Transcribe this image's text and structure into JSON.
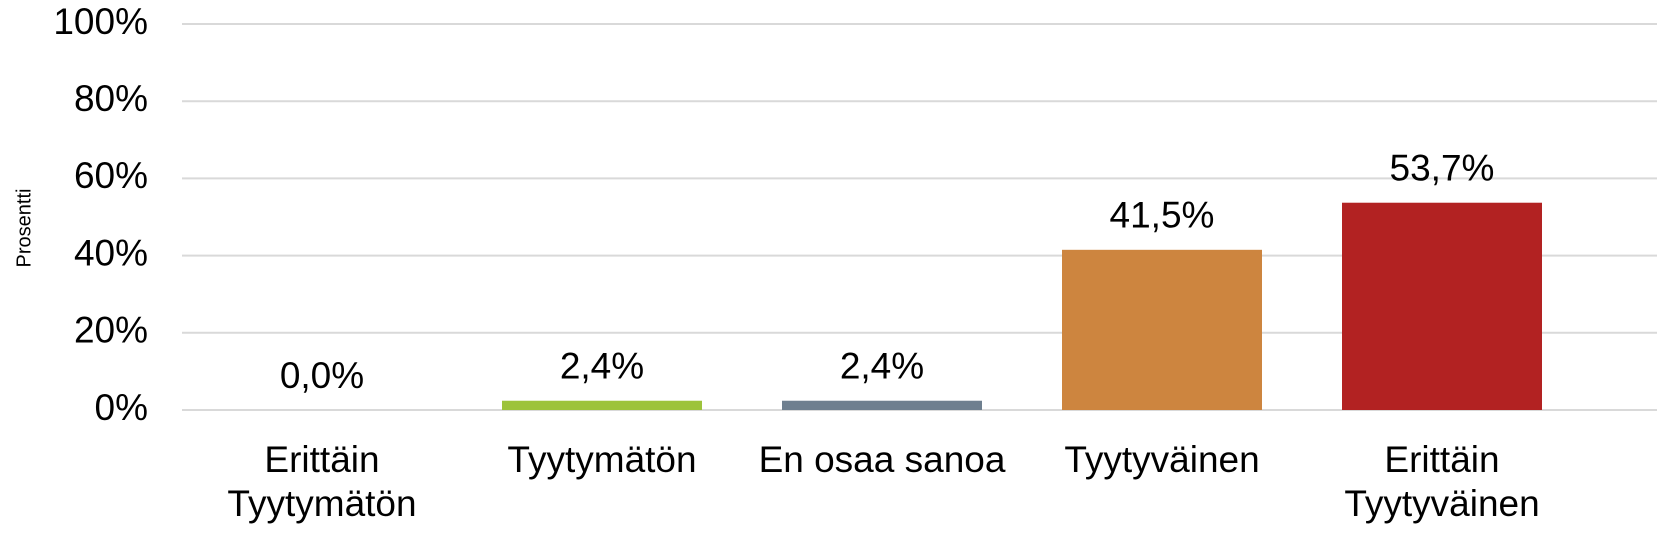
{
  "chart_data": {
    "type": "bar",
    "y_axis_label": "Prosentti",
    "categories": [
      "Erittäin Tyytymätön",
      "Tyytymätön",
      "En osaa sanoa",
      "Tyytyväinen",
      "Erittäin Tyytyväinen"
    ],
    "values": [
      0,
      2.4,
      2.4,
      41.5,
      53.7
    ],
    "value_labels": [
      "0,0%",
      "2,4%",
      "2,4%",
      "41,5%",
      "53,7%"
    ],
    "colors": [
      null,
      "#9dc33b",
      "#6e7f8f",
      "#cd853f",
      "#b22222"
    ],
    "ylim": [
      0,
      100
    ],
    "yticks": [
      {
        "value": 0,
        "label": "0%"
      },
      {
        "value": 20,
        "label": "20%"
      },
      {
        "value": 40,
        "label": "40%"
      },
      {
        "value": 60,
        "label": "60%"
      },
      {
        "value": 80,
        "label": "80%"
      },
      {
        "value": 100,
        "label": "100%"
      }
    ],
    "grid": true
  }
}
